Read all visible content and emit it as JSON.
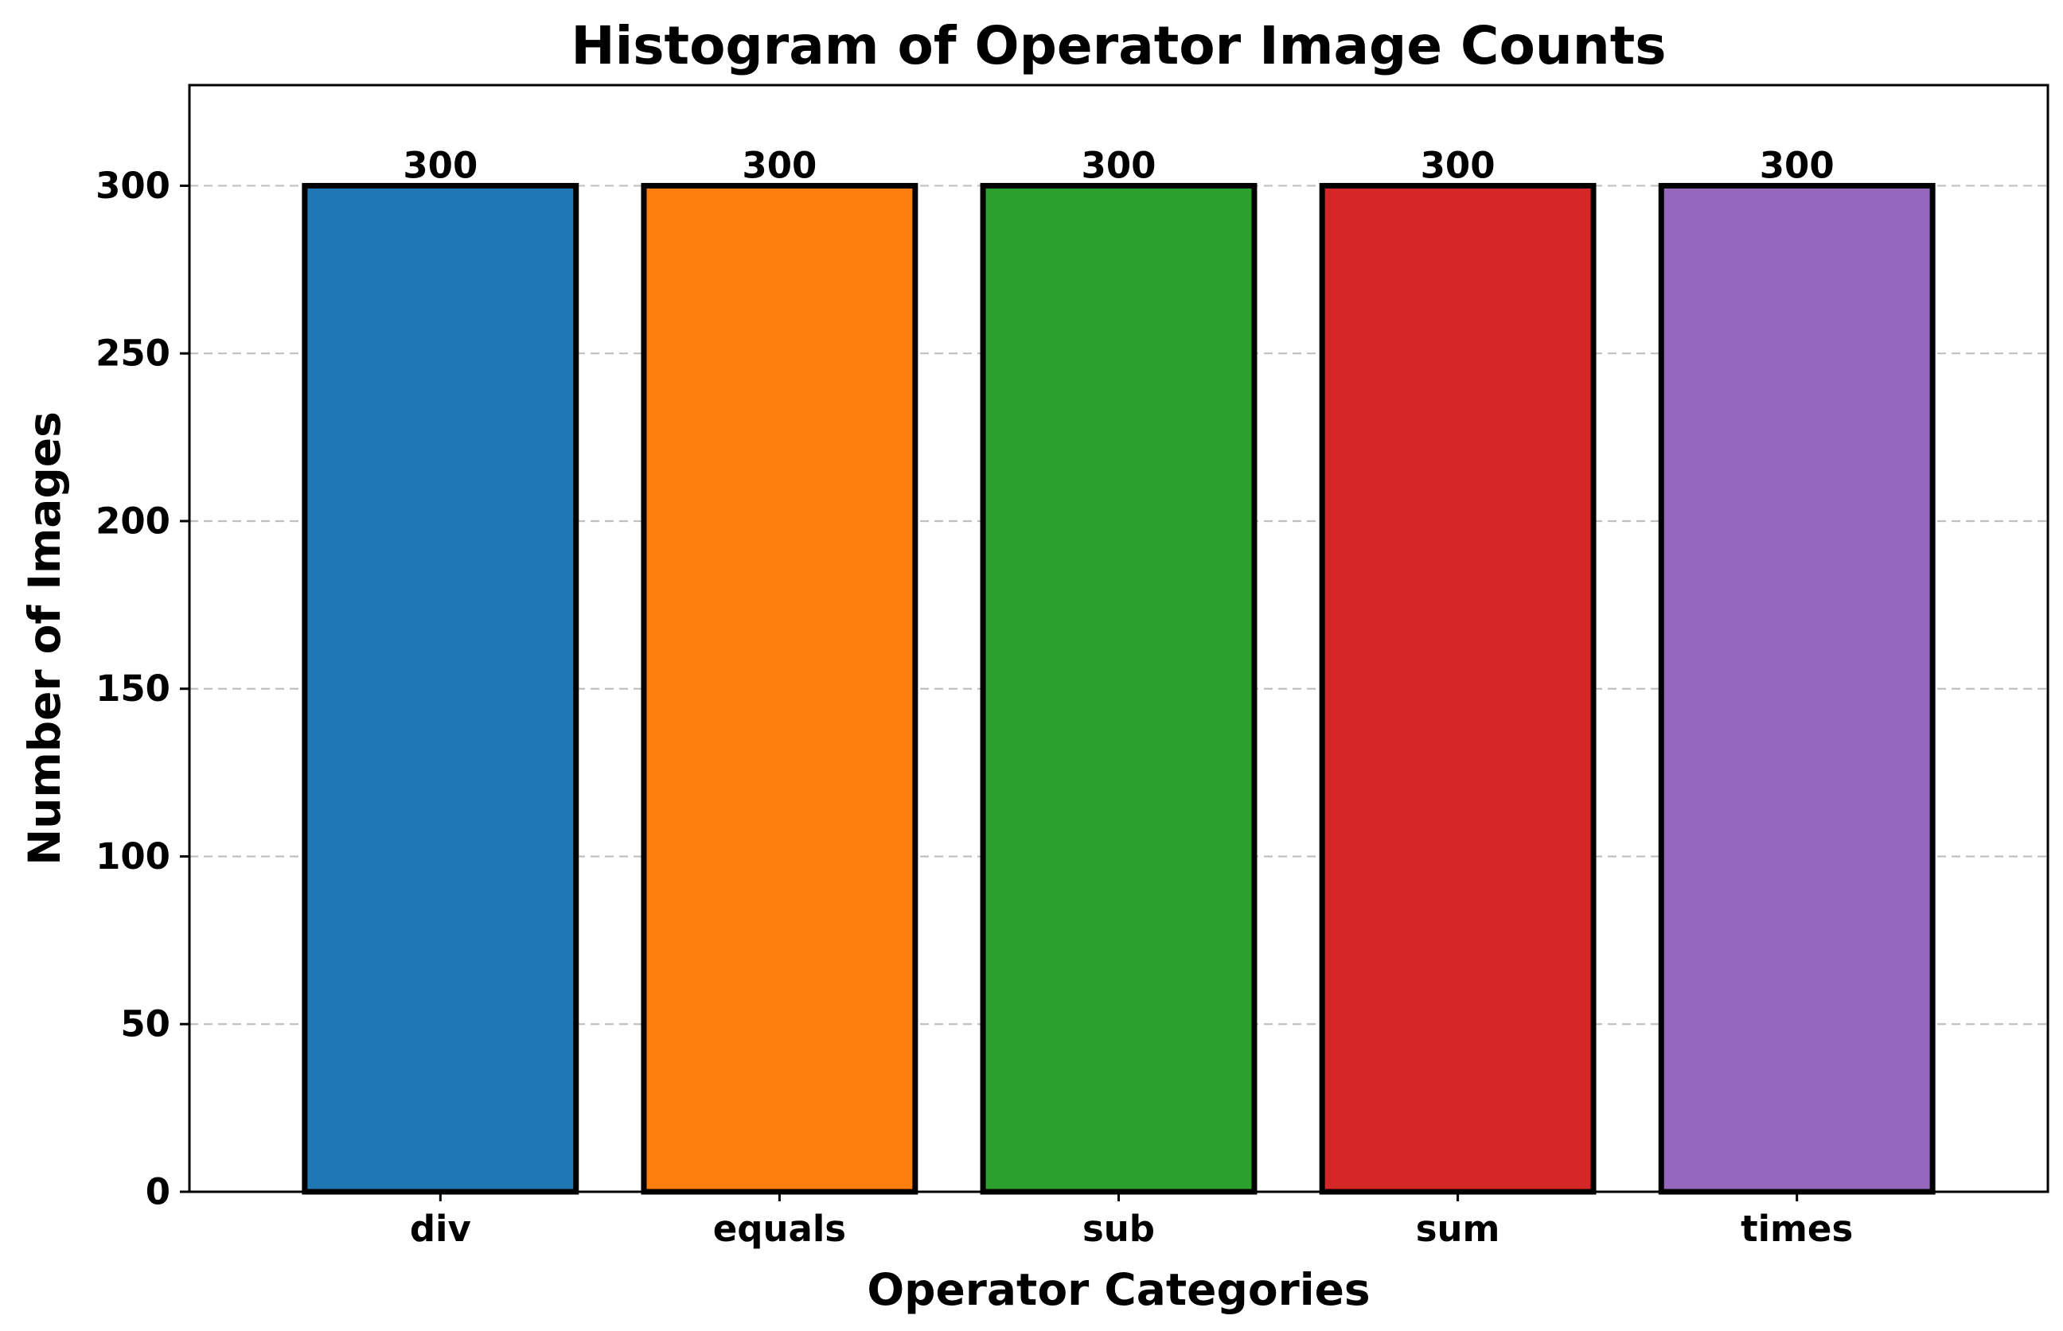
{
  "chart_data": {
    "type": "bar",
    "title": "Histogram of Operator Image Counts",
    "xlabel": "Operator Categories",
    "ylabel": "Number of Images",
    "categories": [
      "div",
      "equals",
      "sub",
      "sum",
      "times"
    ],
    "values": [
      300,
      300,
      300,
      300,
      300
    ],
    "data_labels": [
      "300",
      "300",
      "300",
      "300",
      "300"
    ],
    "colors": [
      "#1f77b4",
      "#ff7f0e",
      "#2ca02c",
      "#d62728",
      "#9467bd"
    ],
    "bar_edge_color": "#000000",
    "ylim": [
      0,
      330
    ],
    "yticks": [
      0,
      50,
      100,
      150,
      200,
      250,
      300
    ],
    "ytick_labels": [
      "0",
      "50",
      "100",
      "150",
      "200",
      "250",
      "300"
    ],
    "grid": "y-axis dashed",
    "grid_color": "#c0c0c0"
  }
}
